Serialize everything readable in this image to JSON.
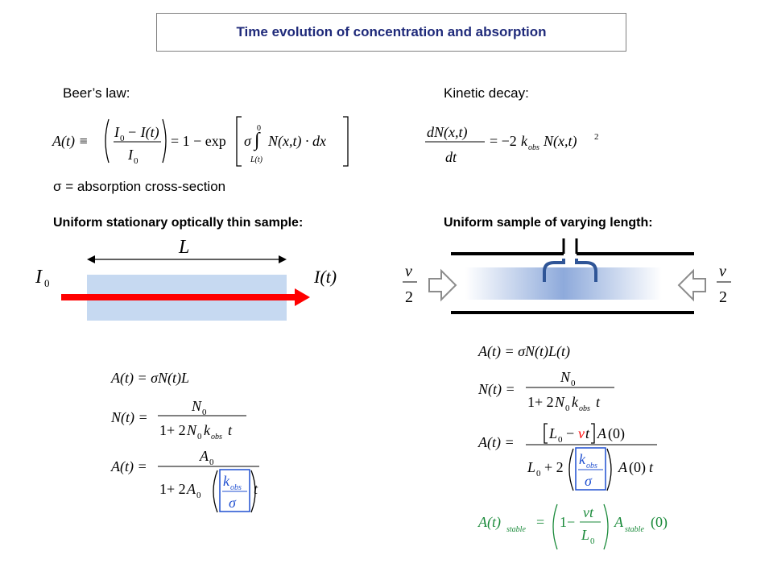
{
  "title": "Time evolution of concentration and absorption",
  "left": {
    "law_label": "Beer’s law:",
    "sigma_note": "σ = absorption cross-section",
    "section_label": "Uniform stationary optically thin sample:",
    "diagram": {
      "length_label": "L",
      "in_label": "I",
      "in_sub": "0",
      "out_label": "I(t)"
    }
  },
  "right": {
    "law_label": "Kinetic decay:",
    "section_label": "Uniform sample of varying length:",
    "diagram": {
      "speed_num": "v",
      "speed_den": "2"
    }
  },
  "colors": {
    "title": "#1f2a7a",
    "sample_fill": "#c6d9f1",
    "beam": "#ff0000",
    "flow_arrow": "#2f5597",
    "highlight_sigma_box": "#1f4fd0",
    "stable_equation": "#1a8a3a",
    "highlight_v": "#ff0000"
  }
}
